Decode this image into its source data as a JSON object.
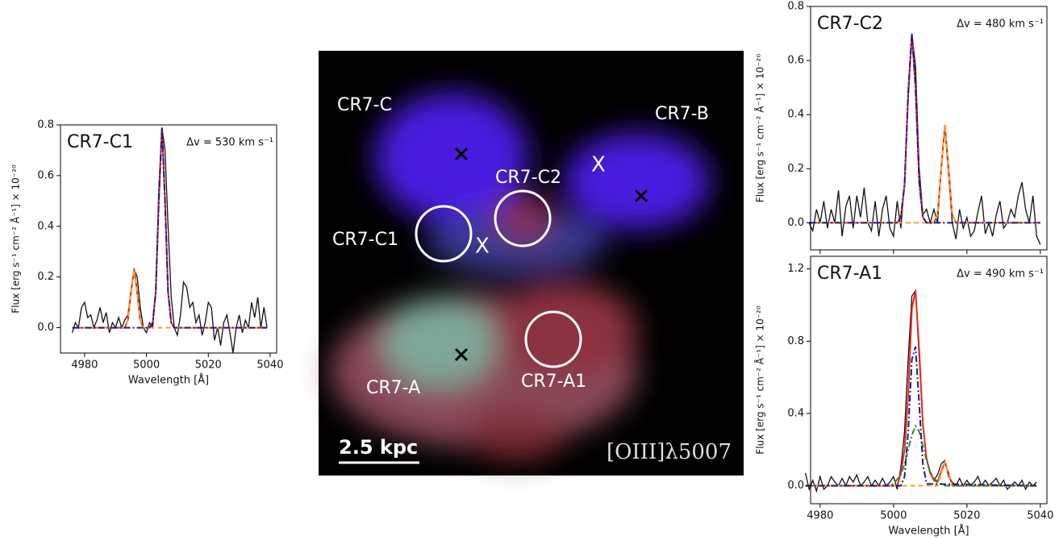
{
  "chart_data": [
    {
      "type": "line",
      "title": "CR7-C1",
      "annotation": "Δv = 530 km s⁻¹",
      "x_label": "Wavelength [Å]",
      "y_label": "Flux [erg s⁻¹ cm⁻² Å⁻¹] × 10⁻²⁰",
      "xlim": [
        4972.2,
        5042.1
      ],
      "ylim": [
        -0.1,
        0.8
      ],
      "xticks": [
        4980,
        5000,
        5020,
        5040
      ],
      "xtick_labels": true,
      "yticks": [
        {
          "value": 0,
          "label": "0.0"
        },
        {
          "value": 0.2,
          "label": "0.2"
        },
        {
          "value": 0.4,
          "label": "0.4"
        },
        {
          "value": 0.6,
          "label": "0.6"
        },
        {
          "value": 0.8,
          "label": "0.8"
        }
      ],
      "series": [
        {
          "color": "#111111",
          "dash": "solid",
          "x": [
            4976,
            4977,
            4978,
            4979,
            4980,
            4981,
            4982,
            4983,
            4984,
            4985,
            4986,
            4987,
            4988,
            4989,
            4990,
            4991,
            4992,
            4993,
            4994,
            4995,
            4996,
            4997,
            4998,
            4999,
            5000,
            5001,
            5002,
            5003,
            5004,
            5005,
            5006,
            5007,
            5008,
            5009,
            5010,
            5011,
            5012,
            5013,
            5014,
            5015,
            5016,
            5017,
            5018,
            5019,
            5020,
            5021,
            5022,
            5023,
            5024,
            5025,
            5026,
            5027,
            5028,
            5029,
            5030,
            5031,
            5032,
            5033,
            5034,
            5035,
            5036,
            5037,
            5038,
            5039
          ],
          "values": [
            -0.02,
            0.02,
            0.0,
            0.08,
            0.1,
            0.04,
            0.05,
            0.0,
            0.03,
            0.08,
            0.02,
            0.06,
            -0.02,
            0.02,
            0.0,
            0.04,
            0.0,
            0.03,
            0.05,
            0.15,
            0.23,
            0.2,
            0.08,
            0.0,
            -0.02,
            0.02,
            0.0,
            0.15,
            0.55,
            0.79,
            0.7,
            0.4,
            0.12,
            0.0,
            -0.03,
            0.05,
            0.18,
            0.16,
            0.08,
            0.1,
            0.02,
            0.05,
            -0.03,
            0.02,
            0.1,
            0.08,
            -0.05,
            0.0,
            -0.07,
            0.02,
            0.05,
            -0.02,
            -0.1,
            0.0,
            0.05,
            -0.02,
            0.03,
            0.0,
            0.1,
            0.04,
            0.12,
            0.0,
            0.08,
            0.0
          ]
        },
        {
          "color": "#e8291c",
          "dash": "solid",
          "x": [
            4976,
            4993,
            4994,
            4995,
            4996,
            4997,
            4998,
            4999,
            5001,
            5002,
            5003,
            5004,
            5005,
            5006,
            5007,
            5008,
            5009,
            5039
          ],
          "values": [
            0,
            0,
            0.03,
            0.14,
            0.23,
            0.14,
            0.03,
            0,
            0,
            0.02,
            0.14,
            0.5,
            0.79,
            0.5,
            0.14,
            0.02,
            0,
            0
          ]
        },
        {
          "color": "#f5a623",
          "dash": "dashed",
          "x": [
            4976,
            4993,
            4994,
            4995,
            4996,
            4997,
            4998,
            4999,
            5039
          ],
          "values": [
            0,
            0,
            0.03,
            0.14,
            0.23,
            0.14,
            0.03,
            0,
            0
          ]
        },
        {
          "color": "#1b1b8f",
          "dash": "dashdot",
          "x": [
            4976,
            5001,
            5002,
            5003,
            5004,
            5005,
            5006,
            5007,
            5008,
            5009,
            5039
          ],
          "values": [
            0,
            0,
            0.02,
            0.14,
            0.5,
            0.79,
            0.5,
            0.14,
            0.02,
            0,
            0
          ]
        }
      ]
    },
    {
      "type": "line",
      "title": "CR7-C2",
      "annotation": "Δv = 480 km s⁻¹",
      "y_label": "Flux [erg s⁻¹ cm⁻² Å⁻¹] × 10⁻²⁰",
      "xlim": [
        4977.4,
        5041.8
      ],
      "ylim": [
        -0.1,
        0.8
      ],
      "xticks": [
        4980,
        5000,
        5020,
        5040
      ],
      "xtick_labels": false,
      "yticks": [
        {
          "value": 0,
          "label": "0.0"
        },
        {
          "value": 0.2,
          "label": "0.2"
        },
        {
          "value": 0.4,
          "label": "0.4"
        },
        {
          "value": 0.6,
          "label": "0.6"
        },
        {
          "value": 0.8,
          "label": "0.8"
        }
      ],
      "series": [
        {
          "color": "#111111",
          "dash": "solid",
          "x": [
            4977,
            4978,
            4979,
            4980,
            4981,
            4982,
            4983,
            4984,
            4985,
            4986,
            4987,
            4988,
            4989,
            4990,
            4991,
            4992,
            4993,
            4994,
            4995,
            4996,
            4997,
            4998,
            4999,
            5000,
            5001,
            5002,
            5003,
            5004,
            5005,
            5006,
            5007,
            5008,
            5009,
            5010,
            5011,
            5012,
            5013,
            5014,
            5015,
            5016,
            5017,
            5018,
            5019,
            5020,
            5021,
            5022,
            5023,
            5024,
            5025,
            5026,
            5027,
            5028,
            5029,
            5030,
            5031,
            5032,
            5033,
            5034,
            5035,
            5036,
            5037,
            5038,
            5039,
            5040
          ],
          "values": [
            0.0,
            -0.03,
            0.05,
            0.0,
            0.08,
            -0.02,
            0.05,
            0.0,
            0.12,
            -0.05,
            0.06,
            0.1,
            -0.02,
            0.1,
            0.02,
            0.13,
            0.0,
            -0.03,
            0.08,
            -0.05,
            0.05,
            0.1,
            -0.02,
            -0.05,
            0.08,
            -0.02,
            0.15,
            0.45,
            0.7,
            0.58,
            0.2,
            0.03,
            0.05,
            0.0,
            0.05,
            0.0,
            0.2,
            0.35,
            0.18,
            0.0,
            -0.06,
            0.05,
            -0.02,
            0.02,
            -0.05,
            -0.03,
            0.04,
            0.1,
            -0.04,
            0.0,
            -0.05,
            0.03,
            0.08,
            -0.02,
            0.0,
            0.05,
            0.02,
            0.1,
            0.15,
            0.05,
            0.0,
            0.1,
            -0.05,
            -0.08
          ]
        },
        {
          "color": "#e8291c",
          "dash": "solid",
          "x": [
            4977,
            5001,
            5002,
            5003,
            5004,
            5005,
            5006,
            5007,
            5008,
            5009,
            5011,
            5012,
            5013,
            5014,
            5015,
            5016,
            5017,
            5040
          ],
          "values": [
            0,
            0,
            0.02,
            0.14,
            0.48,
            0.7,
            0.5,
            0.15,
            0.02,
            0,
            0,
            0.03,
            0.2,
            0.36,
            0.2,
            0.03,
            0,
            0
          ]
        },
        {
          "color": "#f5a623",
          "dash": "dashed",
          "x": [
            4977,
            5011,
            5012,
            5013,
            5014,
            5015,
            5016,
            5017,
            5040
          ],
          "values": [
            0,
            0,
            0.03,
            0.2,
            0.36,
            0.2,
            0.03,
            0,
            0
          ]
        },
        {
          "color": "#1b1b8f",
          "dash": "dashdot",
          "x": [
            4977,
            5001,
            5002,
            5003,
            5004,
            5005,
            5006,
            5007,
            5008,
            5009,
            5040
          ],
          "values": [
            0,
            0,
            0.02,
            0.14,
            0.48,
            0.7,
            0.5,
            0.15,
            0.02,
            0,
            0
          ]
        }
      ]
    },
    {
      "type": "line",
      "title": "CR7-A1",
      "annotation": "Δv = 490 km s⁻¹",
      "x_label": "Wavelength [Å]",
      "y_label": "Flux [erg s⁻¹ cm⁻² Å⁻¹] × 10⁻²⁰",
      "xlim": [
        4977.4,
        5041.8
      ],
      "ylim": [
        -0.1,
        1.27
      ],
      "xticks": [
        4980,
        5000,
        5020,
        5040
      ],
      "xtick_labels": true,
      "yticks": [
        {
          "value": 0,
          "label": "0.0"
        },
        {
          "value": 0.4,
          "label": "0.4"
        },
        {
          "value": 0.8,
          "label": "0.8"
        },
        {
          "value": 1.2,
          "label": "1.2"
        }
      ],
      "series": [
        {
          "color": "#111111",
          "dash": "solid",
          "x": [
            4976,
            4977,
            4978,
            4979,
            4980,
            4981,
            4982,
            4983,
            4984,
            4985,
            4986,
            4987,
            4988,
            4989,
            4990,
            4991,
            4992,
            4993,
            4994,
            4995,
            4996,
            4997,
            4998,
            4999,
            5000,
            5001,
            5002,
            5003,
            5004,
            5005,
            5006,
            5007,
            5008,
            5009,
            5010,
            5011,
            5012,
            5013,
            5014,
            5015,
            5016,
            5017,
            5018,
            5019,
            5020,
            5021,
            5022,
            5023,
            5024,
            5025,
            5026,
            5027,
            5028,
            5029,
            5030,
            5031,
            5032,
            5033,
            5034,
            5035,
            5036,
            5037,
            5038,
            5039
          ],
          "values": [
            0.07,
            -0.02,
            0.03,
            -0.03,
            0.05,
            -0.02,
            0.0,
            0.05,
            0.02,
            0.0,
            0.04,
            0.0,
            0.05,
            0.02,
            0.06,
            0.0,
            0.02,
            0.05,
            0.0,
            0.03,
            0.0,
            0.04,
            0.0,
            0.02,
            0.05,
            -0.02,
            0.1,
            0.3,
            0.7,
            1.05,
            1.08,
            0.7,
            0.35,
            0.15,
            0.08,
            0.03,
            0.06,
            0.12,
            0.14,
            0.05,
            0.02,
            0.0,
            0.04,
            0.0,
            0.03,
            0.0,
            0.02,
            0.05,
            0.0,
            0.03,
            0.0,
            0.02,
            0.04,
            0.0,
            0.03,
            -0.02,
            0.0,
            0.02,
            0.0,
            0.03,
            -0.02,
            0.02,
            0.0,
            0.02
          ]
        },
        {
          "color": "#e8291c",
          "dash": "solid",
          "x": [
            4976,
            5001,
            5002,
            5003,
            5004,
            5005,
            5006,
            5007,
            5008,
            5009,
            5010,
            5011,
            5012,
            5013,
            5014,
            5015,
            5016,
            5039
          ],
          "values": [
            0,
            0,
            0.07,
            0.2,
            0.5,
            0.98,
            1.08,
            0.75,
            0.34,
            0.15,
            0.07,
            0.03,
            0.02,
            0.08,
            0.13,
            0.07,
            0,
            0
          ]
        },
        {
          "color": "#f5a623",
          "dash": "dashed",
          "x": [
            4976,
            5012,
            5013,
            5014,
            5015,
            5016,
            5039
          ],
          "values": [
            0,
            0,
            0.07,
            0.13,
            0.07,
            0,
            0
          ]
        },
        {
          "color": "#2e8b2e",
          "dash": "dashdot",
          "x": [
            4976,
            4998,
            5000,
            5002,
            5003,
            5004,
            5005,
            5006,
            5007,
            5008,
            5009,
            5010,
            5012,
            5014,
            5039
          ],
          "values": [
            0,
            0,
            0.01,
            0.06,
            0.12,
            0.2,
            0.28,
            0.33,
            0.3,
            0.22,
            0.14,
            0.07,
            0.02,
            0,
            0
          ]
        },
        {
          "color": "#1b1b8f",
          "dash": "dashdot",
          "x": [
            4976,
            5002,
            5003,
            5004,
            5005,
            5006,
            5007,
            5008,
            5009,
            5039
          ],
          "values": [
            0,
            0,
            0.05,
            0.3,
            0.7,
            0.77,
            0.45,
            0.12,
            0.01,
            0
          ]
        }
      ]
    }
  ],
  "image": {
    "labels": [
      "CR7-C",
      "CR7-B",
      "CR7-C2",
      "CR7-C1",
      "CR7-A1",
      "CR7-A"
    ],
    "offset_marks": [
      "X",
      "X"
    ],
    "scale_bar": "2.5 kpc",
    "line_label": "[OIII]λ5007"
  }
}
